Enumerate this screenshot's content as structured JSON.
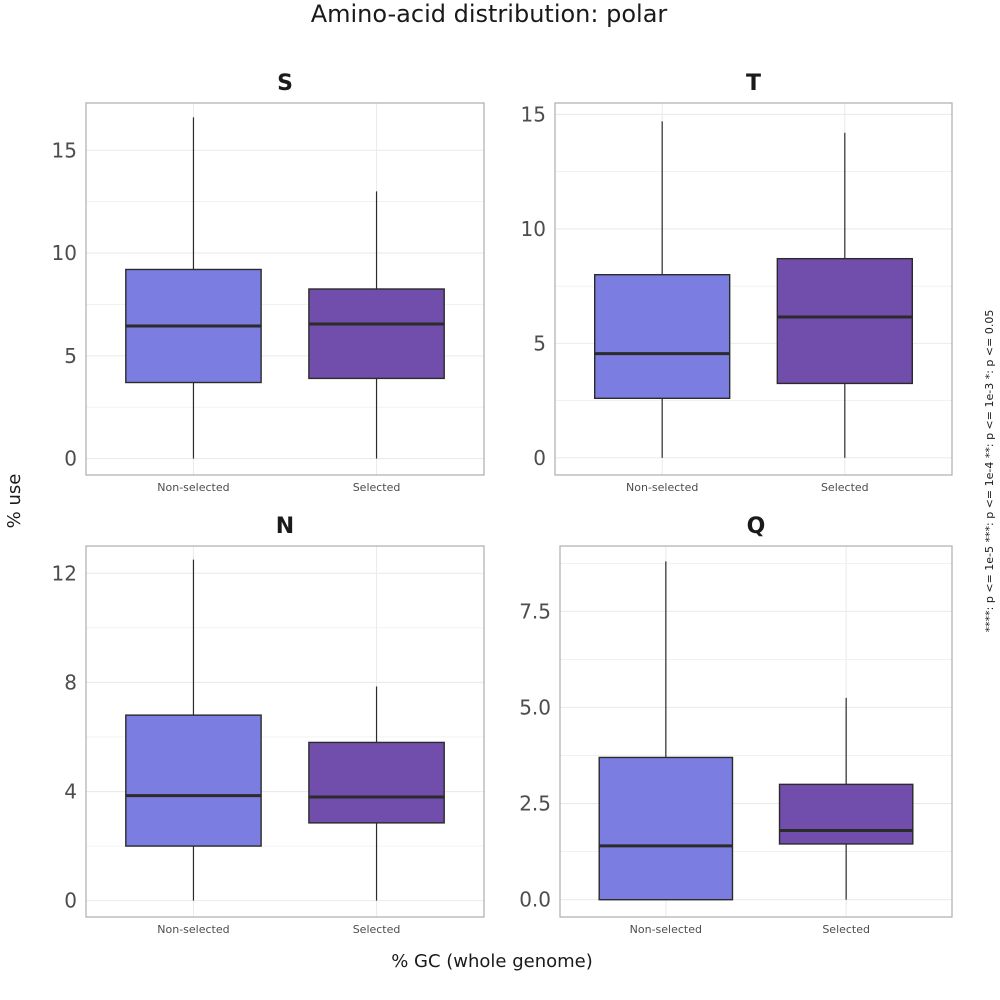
{
  "title": "Amino-acid distribution: polar",
  "xlabel": "% GC (whole genome)",
  "ylabel": "% use",
  "significance_note": "****: p <= 1e-5     ***: p <= 1e-4     **: p <= 1e-3     *: p <= 0.05",
  "colors": {
    "Non-selected": "#7b7ee0",
    "Selected": "#714eab",
    "box_stroke": "#2b2b2b",
    "median": "#2b2b2b",
    "grid": "#ebebeb",
    "panel_border": "#b3b3b3"
  },
  "chart_data": [
    {
      "type": "box",
      "title": "S",
      "categories": [
        "Non-selected",
        "Selected"
      ],
      "ylim": [
        -0.8,
        17.3
      ],
      "yticks": [
        0,
        5,
        10,
        15
      ],
      "ytick_labels": [
        "0",
        "5",
        "10",
        "15"
      ],
      "boxes": [
        {
          "name": "Non-selected",
          "min": 0,
          "q1": 3.7,
          "median": 6.45,
          "q3": 9.2,
          "max": 16.6
        },
        {
          "name": "Selected",
          "min": 0,
          "q1": 3.9,
          "median": 6.55,
          "q3": 8.25,
          "max": 13.0
        }
      ]
    },
    {
      "type": "box",
      "title": "T",
      "categories": [
        "Non-selected",
        "Selected"
      ],
      "ylim": [
        -0.75,
        15.5
      ],
      "yticks": [
        0,
        5,
        10,
        15
      ],
      "ytick_labels": [
        "0",
        "5",
        "10",
        "15"
      ],
      "boxes": [
        {
          "name": "Non-selected",
          "min": 0,
          "q1": 2.6,
          "median": 4.55,
          "q3": 8.0,
          "max": 14.7
        },
        {
          "name": "Selected",
          "min": 0,
          "q1": 3.25,
          "median": 6.15,
          "q3": 8.7,
          "max": 14.2
        }
      ]
    },
    {
      "type": "box",
      "title": "N",
      "categories": [
        "Non-selected",
        "Selected"
      ],
      "ylim": [
        -0.6,
        13.0
      ],
      "yticks": [
        0,
        4,
        8,
        12
      ],
      "ytick_labels": [
        "0",
        "4",
        "8",
        "12"
      ],
      "boxes": [
        {
          "name": "Non-selected",
          "min": 0,
          "q1": 2.0,
          "median": 3.85,
          "q3": 6.8,
          "max": 12.5
        },
        {
          "name": "Selected",
          "min": 0,
          "q1": 2.85,
          "median": 3.8,
          "q3": 5.8,
          "max": 7.85
        }
      ]
    },
    {
      "type": "box",
      "title": "Q",
      "categories": [
        "Non-selected",
        "Selected"
      ],
      "ylim": [
        -0.45,
        9.2
      ],
      "yticks": [
        0,
        2.5,
        5,
        7.5
      ],
      "ytick_labels": [
        "0.0",
        "2.5",
        "5.0",
        "7.5"
      ],
      "boxes": [
        {
          "name": "Non-selected",
          "min": 0,
          "q1": 0,
          "median": 1.4,
          "q3": 3.7,
          "max": 8.8
        },
        {
          "name": "Selected",
          "min": 0,
          "q1": 1.45,
          "median": 1.8,
          "q3": 3.0,
          "max": 5.25
        }
      ]
    }
  ]
}
